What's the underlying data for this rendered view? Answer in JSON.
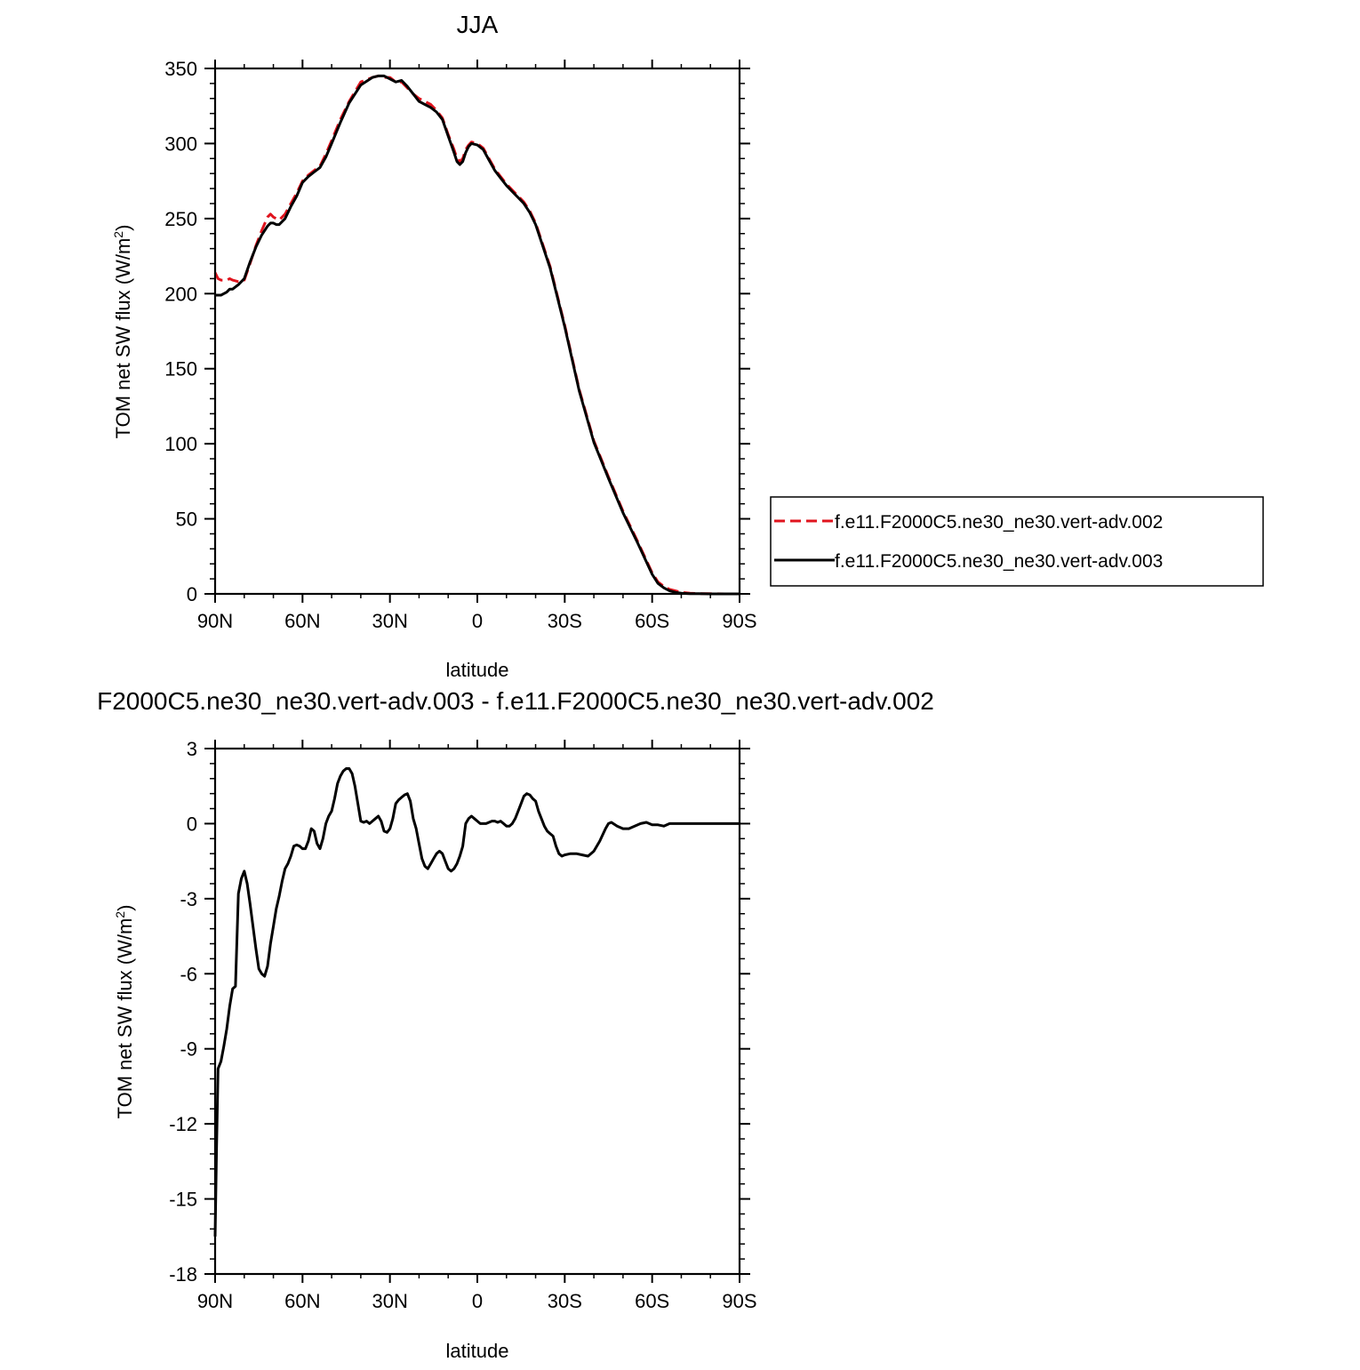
{
  "colors": {
    "run002": "#e0141e",
    "run003": "#000000",
    "axes": "#000000"
  },
  "chart_data": [
    {
      "type": "line",
      "title": "JJA",
      "xlabel": "latitude",
      "ylabel": "TOM net SW flux (W/m",
      "ylabel_sup": "2",
      "ylabel_close": ")",
      "xlim": [
        90,
        -90
      ],
      "ylim": [
        0,
        350
      ],
      "xticks": [
        90,
        60,
        30,
        0,
        -30,
        -60,
        -90
      ],
      "xtick_labels": [
        "90N",
        "60N",
        "30N",
        "0",
        "30S",
        "60S",
        "90S"
      ],
      "yticks": [
        0,
        50,
        100,
        150,
        200,
        250,
        300,
        350
      ],
      "ytick_labels": [
        "0",
        "50",
        "100",
        "150",
        "200",
        "250",
        "300",
        "350"
      ],
      "grid": false,
      "legend": "outside-right",
      "series": [
        {
          "name": "f.e11.F2000C5.ne30_ne30.vert-adv.002",
          "style": "dashed",
          "x": [
            90,
            89,
            88,
            87,
            86,
            85,
            84,
            82,
            80,
            78,
            76,
            74,
            72,
            71,
            70,
            69,
            68,
            66,
            64,
            62,
            60,
            58,
            56,
            54,
            52,
            50,
            47,
            44,
            40,
            36,
            34,
            32,
            30,
            28,
            26,
            24,
            22,
            20,
            18,
            16,
            14,
            12,
            10,
            8,
            7,
            6,
            5,
            4,
            3,
            2,
            0,
            -2,
            -4,
            -6,
            -8,
            -10,
            -12,
            -14,
            -16,
            -18,
            -20,
            -25,
            -30,
            -35,
            -40,
            -45,
            -50,
            -55,
            -60,
            -62,
            -64,
            -66,
            -68,
            -70,
            -73,
            -76,
            -80,
            -85,
            -90
          ],
          "y": [
            214,
            210,
            209,
            209,
            209,
            210,
            209,
            208,
            209,
            220,
            232,
            242,
            251,
            253,
            251,
            250,
            249,
            253,
            260,
            267,
            275,
            279,
            282,
            285,
            293,
            302,
            316,
            328,
            341,
            344,
            345,
            344,
            344,
            341,
            341,
            337,
            333,
            330,
            328,
            326,
            322,
            317,
            306,
            296,
            290,
            288,
            290,
            296,
            299,
            301,
            300,
            297,
            290,
            283,
            278,
            273,
            269,
            265,
            261,
            255,
            247,
            218,
            179,
            136,
            102,
            78,
            55,
            35,
            14,
            8,
            5,
            3,
            2,
            1,
            0.5,
            0.2,
            0.1,
            0,
            0
          ]
        },
        {
          "name": "f.e11.F2000C5.ne30_ne30.vert-adv.003",
          "style": "solid",
          "x": [
            90,
            89,
            88,
            87,
            86,
            85,
            84,
            82,
            80,
            78,
            76,
            74,
            72,
            71,
            70,
            69,
            68,
            66,
            64,
            62,
            60,
            58,
            56,
            54,
            52,
            50,
            47,
            44,
            40,
            36,
            34,
            32,
            30,
            28,
            26,
            24,
            22,
            20,
            18,
            16,
            14,
            12,
            10,
            8,
            7,
            6,
            5,
            4,
            3,
            2,
            0,
            -2,
            -4,
            -6,
            -8,
            -10,
            -12,
            -14,
            -16,
            -18,
            -20,
            -25,
            -30,
            -35,
            -40,
            -45,
            -50,
            -55,
            -60,
            -62,
            -64,
            -66,
            -68,
            -70,
            -73,
            -76,
            -80,
            -85,
            -90
          ],
          "y": [
            199,
            199,
            199,
            200,
            201,
            203,
            203,
            206,
            210,
            221,
            231,
            239,
            245,
            247,
            247,
            246,
            246,
            250,
            258,
            265,
            274,
            278,
            281,
            284,
            291,
            300,
            314,
            327,
            339,
            344,
            345,
            345,
            343,
            341,
            342,
            338,
            333,
            328,
            326,
            324,
            321,
            316,
            305,
            294,
            288,
            286,
            288,
            294,
            298,
            300,
            299,
            296,
            289,
            282,
            277,
            272,
            268,
            264,
            260,
            254,
            246,
            217,
            178,
            135,
            101,
            77,
            54,
            34,
            13,
            7,
            4,
            2,
            1,
            0.5,
            0.2,
            0.1,
            0,
            0,
            0
          ]
        }
      ]
    },
    {
      "type": "line",
      "title": "F2000C5.ne30_ne30.vert-adv.003 - f.e11.F2000C5.ne30_ne30.vert-adv.002",
      "xlabel": "latitude",
      "ylabel": "TOM net SW flux (W/m",
      "ylabel_sup": "2",
      "ylabel_close": ")",
      "xlim": [
        90,
        -90
      ],
      "ylim": [
        -18,
        3
      ],
      "xticks": [
        90,
        60,
        30,
        0,
        -30,
        -60,
        -90
      ],
      "xtick_labels": [
        "90N",
        "60N",
        "30N",
        "0",
        "30S",
        "60S",
        "90S"
      ],
      "yticks": [
        3,
        0,
        -3,
        -6,
        -9,
        -12,
        -15,
        -18
      ],
      "ytick_labels": [
        "3",
        "0",
        "-3",
        "-6",
        "-9",
        "-12",
        "-15",
        "-18"
      ],
      "grid": false,
      "series": [
        {
          "name": "",
          "style": "solid",
          "x": [
            90,
            89.5,
            89,
            88,
            87,
            86,
            85,
            84,
            83,
            82,
            81,
            80,
            79,
            78,
            77,
            76,
            75,
            74,
            73,
            72,
            71,
            70,
            69,
            68,
            67,
            66,
            65,
            64,
            63,
            62,
            61,
            60,
            59,
            58,
            57,
            56,
            55,
            54,
            53,
            52,
            51,
            50,
            49,
            48,
            47,
            46,
            45,
            44,
            43,
            42,
            41,
            40,
            39,
            38,
            37,
            36,
            35,
            34,
            33,
            32,
            31,
            30,
            29,
            28,
            27,
            26,
            25,
            24,
            23,
            22,
            21,
            20,
            19,
            18,
            17,
            16,
            15,
            14,
            13,
            12,
            11,
            10,
            9,
            8,
            7,
            6,
            5,
            4,
            3,
            2,
            1,
            0,
            -1,
            -2,
            -3,
            -4,
            -5,
            -6,
            -7,
            -8,
            -9,
            -10,
            -11,
            -12,
            -13,
            -14,
            -15,
            -16,
            -17,
            -18,
            -19,
            -20,
            -21,
            -22,
            -23,
            -24,
            -25,
            -26,
            -27,
            -28,
            -29,
            -30,
            -32,
            -34,
            -36,
            -38,
            -40,
            -42,
            -44,
            -45,
            -46,
            -48,
            -50,
            -52,
            -54,
            -56,
            -58,
            -60,
            -62,
            -64,
            -66,
            -70,
            -75,
            -80,
            -85,
            -90
          ],
          "y": [
            -16.5,
            -13,
            -9.8,
            -9.5,
            -8.9,
            -8.2,
            -7.3,
            -6.6,
            -6.5,
            -2.8,
            -2.2,
            -1.9,
            -2.4,
            -3.2,
            -4.1,
            -5.0,
            -5.8,
            -6.0,
            -6.1,
            -5.7,
            -4.8,
            -4.1,
            -3.4,
            -2.9,
            -2.3,
            -1.8,
            -1.6,
            -1.3,
            -0.9,
            -0.85,
            -0.9,
            -1.0,
            -1.0,
            -0.7,
            -0.2,
            -0.3,
            -0.8,
            -1.0,
            -0.6,
            0.0,
            0.3,
            0.5,
            1.0,
            1.6,
            1.9,
            2.1,
            2.2,
            2.2,
            2.0,
            1.5,
            0.8,
            0.1,
            0.05,
            0.1,
            0.0,
            0.1,
            0.2,
            0.3,
            0.1,
            -0.3,
            -0.35,
            -0.2,
            0.2,
            0.8,
            0.95,
            1.05,
            1.15,
            1.2,
            0.9,
            0.2,
            -0.2,
            -0.8,
            -1.4,
            -1.7,
            -1.8,
            -1.6,
            -1.4,
            -1.2,
            -1.1,
            -1.2,
            -1.5,
            -1.8,
            -1.9,
            -1.8,
            -1.6,
            -1.3,
            -0.9,
            0.0,
            0.2,
            0.3,
            0.2,
            0.1,
            0.0,
            0.0,
            0.0,
            0.05,
            0.1,
            0.1,
            0.05,
            0.1,
            0.0,
            -0.1,
            -0.1,
            0.0,
            0.2,
            0.5,
            0.8,
            1.1,
            1.2,
            1.15,
            1.0,
            0.9,
            0.5,
            0.2,
            -0.1,
            -0.3,
            -0.4,
            -0.5,
            -0.9,
            -1.2,
            -1.3,
            -1.25,
            -1.2,
            -1.2,
            -1.25,
            -1.3,
            -1.1,
            -0.7,
            -0.2,
            0.0,
            0.05,
            -0.1,
            -0.2,
            -0.2,
            -0.1,
            0.0,
            0.05,
            -0.05,
            -0.05,
            -0.1,
            0.0,
            0.0,
            0.0,
            0.0,
            0.0,
            0.0
          ]
        }
      ]
    }
  ]
}
